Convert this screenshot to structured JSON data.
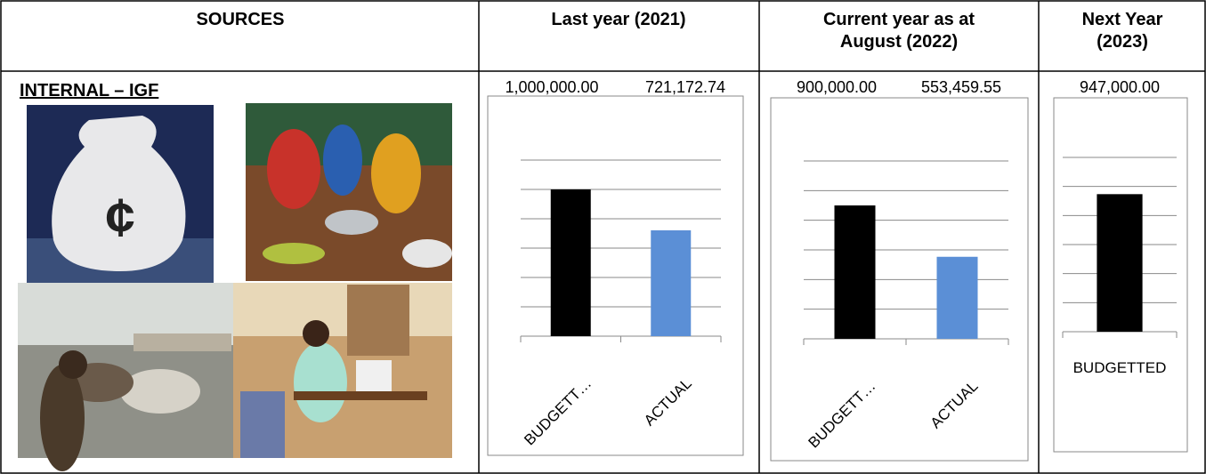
{
  "table": {
    "headers": [
      [
        "SOURCES"
      ],
      [
        "Last year (2021)"
      ],
      [
        "Current year as at",
        "August (2022)"
      ],
      [
        "Next Year",
        "(2023)"
      ]
    ],
    "section": "INTERNAL – IGF"
  },
  "chart_data": [
    {
      "type": "bar",
      "categories": [
        "BUDGETT…",
        "ACTUAL"
      ],
      "values": [
        1000000,
        721172.74
      ],
      "value_labels": [
        "1,000,000.00",
        "721,172.74"
      ],
      "colors": [
        "#000000",
        "#5b8fd6"
      ],
      "ylim": [
        0,
        1200000
      ],
      "yticks": [
        0,
        200000,
        400000,
        600000,
        800000,
        1000000,
        1200000
      ],
      "grid": true
    },
    {
      "type": "bar",
      "categories": [
        "BUDGETT…",
        "ACTUAL"
      ],
      "values": [
        900000,
        553459.55
      ],
      "value_labels": [
        "900,000.00",
        "553,459.55"
      ],
      "colors": [
        "#000000",
        "#5b8fd6"
      ],
      "ylim": [
        0,
        1200000
      ],
      "yticks": [
        0,
        200000,
        400000,
        600000,
        800000,
        1000000,
        1200000
      ],
      "grid": true
    },
    {
      "type": "bar",
      "categories": [
        "BUDGETTED"
      ],
      "values": [
        947000
      ],
      "value_labels": [
        "947,000.00"
      ],
      "colors": [
        "#000000"
      ],
      "ylim": [
        0,
        1200000
      ],
      "yticks": [
        0,
        200000,
        400000,
        600000,
        800000,
        1000000,
        1200000
      ],
      "grid": true
    }
  ]
}
